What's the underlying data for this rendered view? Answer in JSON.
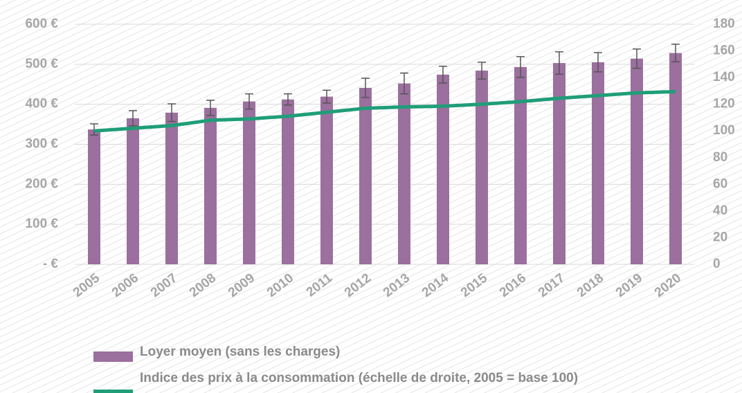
{
  "chart_data": {
    "type": "bar",
    "categories": [
      "2005",
      "2006",
      "2007",
      "2008",
      "2009",
      "2010",
      "2011",
      "2012",
      "2013",
      "2014",
      "2015",
      "2016",
      "2017",
      "2018",
      "2019",
      "2020"
    ],
    "series": [
      {
        "name": "Loyer moyen (sans les charges)",
        "type": "bar",
        "color": "#9b6f9e",
        "values": [
          337,
          365,
          379,
          391,
          407,
          412,
          419,
          441,
          452,
          474,
          484,
          493,
          503,
          505,
          514,
          528
        ],
        "errors": [
          14,
          19,
          22,
          19,
          19,
          14,
          16,
          24,
          26,
          21,
          21,
          26,
          28,
          24,
          24,
          22
        ]
      },
      {
        "name": "Indice des prix à la consommation (échelle de droite, 2005 = base 100)",
        "type": "line",
        "color": "#1f9e78",
        "axis": "y2",
        "values": [
          100,
          102,
          104,
          108,
          109,
          111,
          114,
          117,
          118,
          118.5,
          120,
          122,
          124.5,
          126.5,
          128.5,
          129.5
        ]
      }
    ],
    "ylim": [
      0,
      600
    ],
    "yticks": [
      {
        "value": 0,
        "label": "-  €"
      },
      {
        "value": 100,
        "label": "100 €"
      },
      {
        "value": 200,
        "label": "200 €"
      },
      {
        "value": 300,
        "label": "300 €"
      },
      {
        "value": 400,
        "label": "400 €"
      },
      {
        "value": 500,
        "label": "500 €"
      },
      {
        "value": 600,
        "label": "600 €"
      }
    ],
    "y2lim": [
      0,
      180
    ],
    "y2ticks": [
      0,
      20,
      40,
      60,
      80,
      100,
      120,
      140,
      160,
      180
    ],
    "grid": true
  }
}
